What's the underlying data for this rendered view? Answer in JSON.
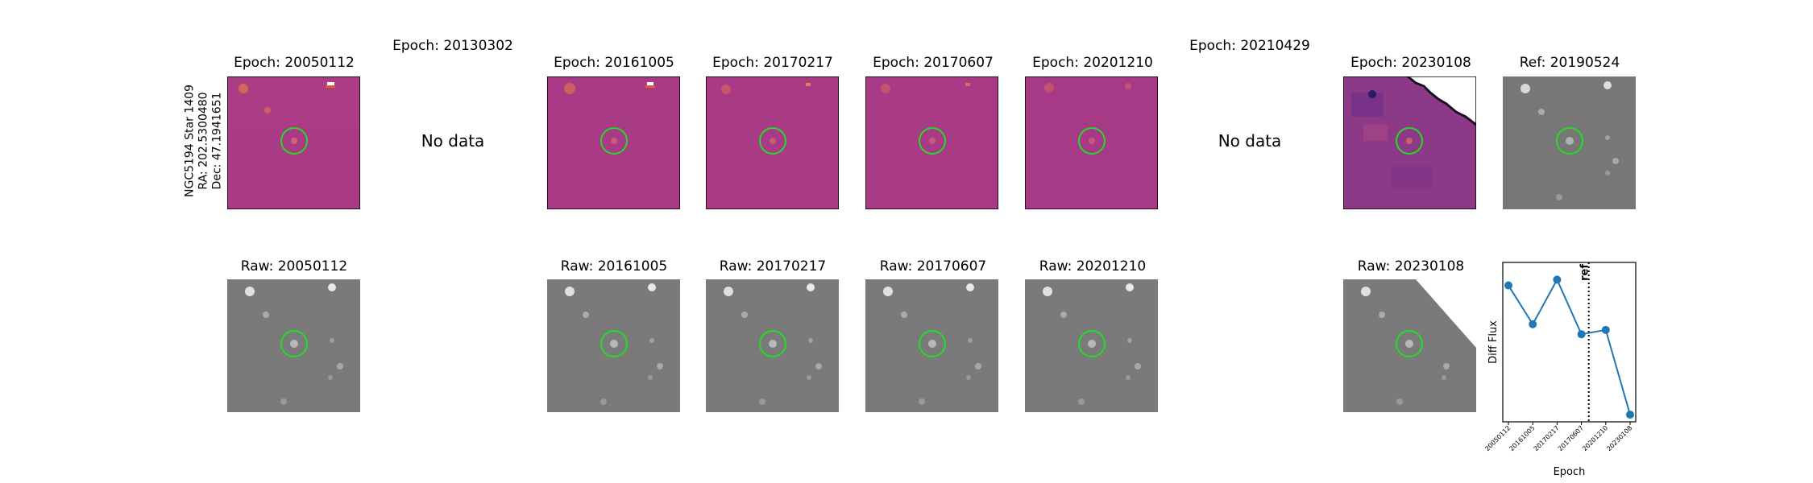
{
  "target": {
    "name": "NGC5194 Star 1409",
    "ra": "RA: 202.5300480",
    "dec": "Dec: 47.1941651"
  },
  "nodata_text": "No data",
  "diff_titles": [
    "Epoch: 20050112",
    "Epoch: 20130302",
    "Epoch: 20161005",
    "Epoch: 20170217",
    "Epoch: 20170607",
    "Epoch: 20201210",
    "Epoch: 20210429",
    "Epoch: 20230108",
    "Ref: 20190524"
  ],
  "raw_titles": [
    "Raw: 20050112",
    "Raw: 20161005",
    "Raw: 20170217",
    "Raw: 20170607",
    "Raw: 20201210",
    "Raw: 20230108"
  ],
  "colors": {
    "diff_bg": "#a83a86",
    "raw_bg": "#7a7a7a",
    "ring": "#22dd22",
    "line": "#1f77b4"
  },
  "chart_data": {
    "type": "line",
    "xlabel": "Epoch",
    "ylabel": "Diff Flux",
    "categories": [
      "20050112",
      "20161005",
      "20170217",
      "20170607",
      "20201210",
      "20230108"
    ],
    "series": [
      {
        "values": [
          0.82,
          0.55,
          0.86,
          0.48,
          0.51,
          -0.08
        ]
      }
    ],
    "ylim": [
      -0.13,
      0.98
    ],
    "annotations": [
      {
        "text": "ref",
        "between": [
          "20170607",
          "20201210"
        ],
        "style": "dotted vertical line"
      }
    ],
    "grid": false
  }
}
